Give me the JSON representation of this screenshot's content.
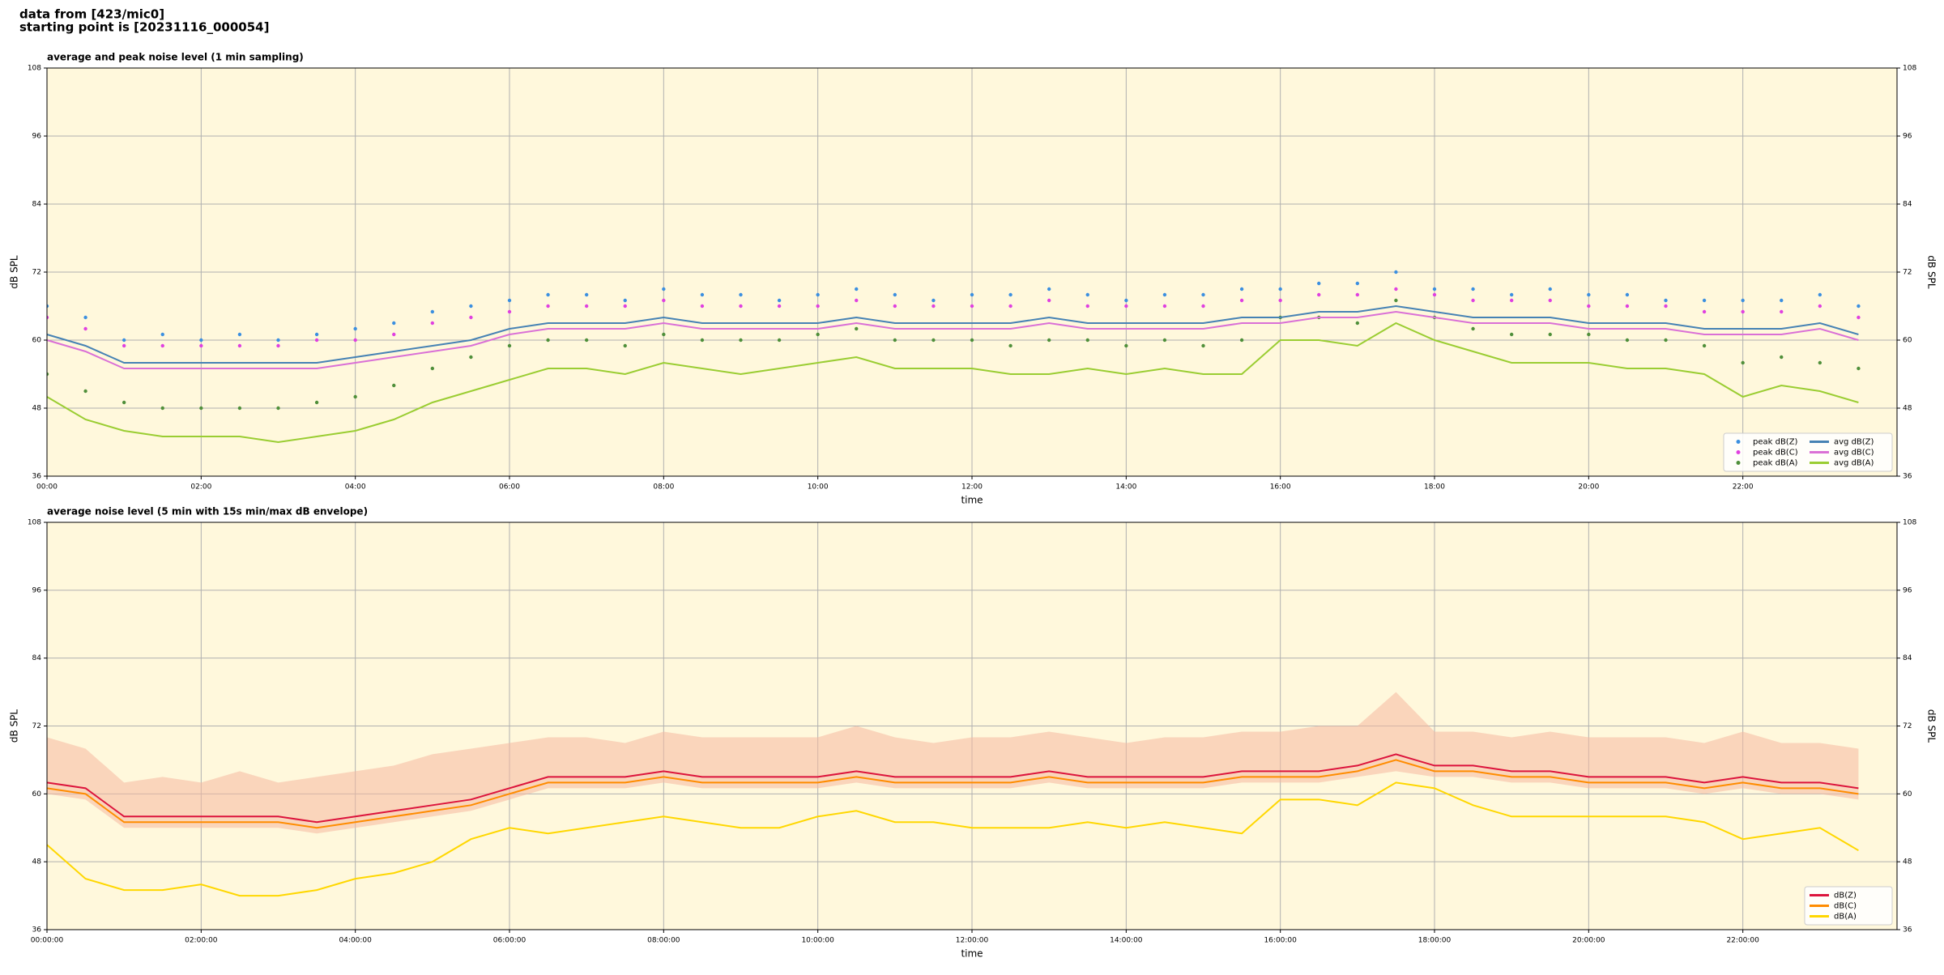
{
  "header": {
    "line1": "data from [423/mic0]",
    "line2": "starting point is [20231116_000054]"
  },
  "chart_data": [
    {
      "type": "line",
      "title": "average and peak noise level (1 min sampling)",
      "xlabel": "time",
      "ylabel": "dB SPL",
      "xlim": [
        0,
        24
      ],
      "ylim": [
        36,
        108
      ],
      "xticks": [
        {
          "value": 0,
          "label": "00:00"
        },
        {
          "value": 2,
          "label": "02:00"
        },
        {
          "value": 4,
          "label": "04:00"
        },
        {
          "value": 6,
          "label": "06:00"
        },
        {
          "value": 8,
          "label": "08:00"
        },
        {
          "value": 10,
          "label": "10:00"
        },
        {
          "value": 12,
          "label": "12:00"
        },
        {
          "value": 14,
          "label": "14:00"
        },
        {
          "value": 16,
          "label": "16:00"
        },
        {
          "value": 18,
          "label": "18:00"
        },
        {
          "value": 20,
          "label": "20:00"
        },
        {
          "value": 22,
          "label": "22:00"
        }
      ],
      "yticks": [
        36,
        48,
        60,
        72,
        84,
        96,
        108
      ],
      "grid": true,
      "legend": "lower right",
      "legend_columns": 2,
      "x": [
        0,
        0.5,
        1,
        1.5,
        2,
        2.5,
        3,
        3.5,
        4,
        4.5,
        5,
        5.5,
        6,
        6.5,
        7,
        7.5,
        8,
        8.5,
        9,
        9.5,
        10,
        10.5,
        11,
        11.5,
        12,
        12.5,
        13,
        13.5,
        14,
        14.5,
        15,
        15.5,
        16,
        16.5,
        17,
        17.5,
        18,
        18.5,
        19,
        19.5,
        20,
        20.5,
        21,
        21.5,
        22,
        22.5,
        23,
        23.5
      ],
      "series": [
        {
          "name": "peak dB(Z)",
          "style": "markers",
          "color": "#3b8fe0",
          "values": [
            66,
            64,
            60,
            61,
            60,
            61,
            60,
            61,
            62,
            63,
            65,
            66,
            67,
            68,
            68,
            67,
            69,
            68,
            68,
            67,
            68,
            69,
            68,
            67,
            68,
            68,
            69,
            68,
            67,
            68,
            68,
            69,
            69,
            70,
            70,
            72,
            69,
            69,
            68,
            69,
            68,
            68,
            67,
            67,
            67,
            67,
            68,
            66
          ]
        },
        {
          "name": "peak dB(C)",
          "style": "markers",
          "color": "#e040e0",
          "values": [
            64,
            62,
            59,
            59,
            59,
            59,
            59,
            60,
            60,
            61,
            63,
            64,
            65,
            66,
            66,
            66,
            67,
            66,
            66,
            66,
            66,
            67,
            66,
            66,
            66,
            66,
            67,
            66,
            66,
            66,
            66,
            67,
            67,
            68,
            68,
            69,
            68,
            67,
            67,
            67,
            66,
            66,
            66,
            65,
            65,
            65,
            66,
            64
          ]
        },
        {
          "name": "peak dB(A)",
          "style": "markers",
          "color": "#4f8f3a",
          "values": [
            54,
            51,
            49,
            48,
            48,
            48,
            48,
            49,
            50,
            52,
            55,
            57,
            59,
            60,
            60,
            59,
            61,
            60,
            60,
            60,
            61,
            62,
            60,
            60,
            60,
            59,
            60,
            60,
            59,
            60,
            59,
            60,
            64,
            64,
            63,
            67,
            64,
            62,
            61,
            61,
            61,
            60,
            60,
            59,
            56,
            57,
            56,
            55
          ]
        },
        {
          "name": "avg dB(Z)",
          "style": "line",
          "color": "#4682b4",
          "values": [
            61,
            59,
            56,
            56,
            56,
            56,
            56,
            56,
            57,
            58,
            59,
            60,
            62,
            63,
            63,
            63,
            64,
            63,
            63,
            63,
            63,
            64,
            63,
            63,
            63,
            63,
            64,
            63,
            63,
            63,
            63,
            64,
            64,
            65,
            65,
            66,
            65,
            64,
            64,
            64,
            63,
            63,
            63,
            62,
            62,
            62,
            63,
            61
          ]
        },
        {
          "name": "avg dB(C)",
          "style": "line",
          "color": "#da70d6",
          "values": [
            60,
            58,
            55,
            55,
            55,
            55,
            55,
            55,
            56,
            57,
            58,
            59,
            61,
            62,
            62,
            62,
            63,
            62,
            62,
            62,
            62,
            63,
            62,
            62,
            62,
            62,
            63,
            62,
            62,
            62,
            62,
            63,
            63,
            64,
            64,
            65,
            64,
            63,
            63,
            63,
            62,
            62,
            62,
            61,
            61,
            61,
            62,
            60
          ]
        },
        {
          "name": "avg dB(A)",
          "style": "line",
          "color": "#9acd32",
          "values": [
            50,
            46,
            44,
            43,
            43,
            43,
            42,
            43,
            44,
            46,
            49,
            51,
            53,
            55,
            55,
            54,
            56,
            55,
            54,
            55,
            56,
            57,
            55,
            55,
            55,
            54,
            54,
            55,
            54,
            55,
            54,
            54,
            60,
            60,
            59,
            63,
            60,
            58,
            56,
            56,
            56,
            55,
            55,
            54,
            50,
            52,
            51,
            49
          ]
        }
      ]
    },
    {
      "type": "line",
      "title": "average noise level (5 min with 15s min/max dB envelope)",
      "xlabel": "time",
      "ylabel": "dB SPL",
      "xlim": [
        0,
        24
      ],
      "ylim": [
        36,
        108
      ],
      "xticks": [
        {
          "value": 0,
          "label": "00:00:00"
        },
        {
          "value": 2,
          "label": "02:00:00"
        },
        {
          "value": 4,
          "label": "04:00:00"
        },
        {
          "value": 6,
          "label": "06:00:00"
        },
        {
          "value": 8,
          "label": "08:00:00"
        },
        {
          "value": 10,
          "label": "10:00:00"
        },
        {
          "value": 12,
          "label": "12:00:00"
        },
        {
          "value": 14,
          "label": "14:00:00"
        },
        {
          "value": 16,
          "label": "16:00:00"
        },
        {
          "value": 18,
          "label": "18:00:00"
        },
        {
          "value": 20,
          "label": "20:00:00"
        },
        {
          "value": 22,
          "label": "22:00:00"
        }
      ],
      "yticks": [
        36,
        48,
        60,
        72,
        84,
        96,
        108
      ],
      "grid": true,
      "legend": "lower right",
      "legend_columns": 1,
      "x": [
        0,
        0.5,
        1,
        1.5,
        2,
        2.5,
        3,
        3.5,
        4,
        4.5,
        5,
        5.5,
        6,
        6.5,
        7,
        7.5,
        8,
        8.5,
        9,
        9.5,
        10,
        10.5,
        11,
        11.5,
        12,
        12.5,
        13,
        13.5,
        14,
        14.5,
        15,
        15.5,
        16,
        16.5,
        17,
        17.5,
        18,
        18.5,
        19,
        19.5,
        20,
        20.5,
        21,
        21.5,
        22,
        22.5,
        23,
        23.5
      ],
      "envelope": {
        "color": "#f5b8a0",
        "min": [
          60,
          59,
          54,
          54,
          54,
          54,
          54,
          53,
          54,
          55,
          56,
          57,
          59,
          61,
          61,
          61,
          62,
          61,
          61,
          61,
          61,
          62,
          61,
          61,
          61,
          61,
          62,
          61,
          61,
          61,
          61,
          62,
          62,
          62,
          63,
          64,
          63,
          63,
          62,
          62,
          61,
          61,
          61,
          60,
          61,
          60,
          60,
          59
        ],
        "max": [
          70,
          68,
          62,
          63,
          62,
          64,
          62,
          63,
          64,
          65,
          67,
          68,
          69,
          70,
          70,
          69,
          71,
          70,
          70,
          70,
          70,
          72,
          70,
          69,
          70,
          70,
          71,
          70,
          69,
          70,
          70,
          71,
          71,
          72,
          72,
          78,
          71,
          71,
          70,
          71,
          70,
          70,
          70,
          69,
          71,
          69,
          69,
          68
        ]
      },
      "series": [
        {
          "name": "dB(Z)",
          "style": "line",
          "color": "#dc143c",
          "values": [
            62,
            61,
            56,
            56,
            56,
            56,
            56,
            55,
            56,
            57,
            58,
            59,
            61,
            63,
            63,
            63,
            64,
            63,
            63,
            63,
            63,
            64,
            63,
            63,
            63,
            63,
            64,
            63,
            63,
            63,
            63,
            64,
            64,
            64,
            65,
            67,
            65,
            65,
            64,
            64,
            63,
            63,
            63,
            62,
            63,
            62,
            62,
            61
          ]
        },
        {
          "name": "dB(C)",
          "style": "line",
          "color": "#ff8c00",
          "values": [
            61,
            60,
            55,
            55,
            55,
            55,
            55,
            54,
            55,
            56,
            57,
            58,
            60,
            62,
            62,
            62,
            63,
            62,
            62,
            62,
            62,
            63,
            62,
            62,
            62,
            62,
            63,
            62,
            62,
            62,
            62,
            63,
            63,
            63,
            64,
            66,
            64,
            64,
            63,
            63,
            62,
            62,
            62,
            61,
            62,
            61,
            61,
            60
          ]
        },
        {
          "name": "dB(A)",
          "style": "line",
          "color": "#ffd700",
          "values": [
            51,
            45,
            43,
            43,
            44,
            42,
            42,
            43,
            45,
            46,
            48,
            52,
            54,
            53,
            54,
            55,
            56,
            55,
            54,
            54,
            56,
            57,
            55,
            55,
            54,
            54,
            54,
            55,
            54,
            55,
            54,
            53,
            59,
            59,
            58,
            62,
            61,
            58,
            56,
            56,
            56,
            56,
            56,
            55,
            52,
            53,
            54,
            50
          ]
        }
      ]
    }
  ]
}
